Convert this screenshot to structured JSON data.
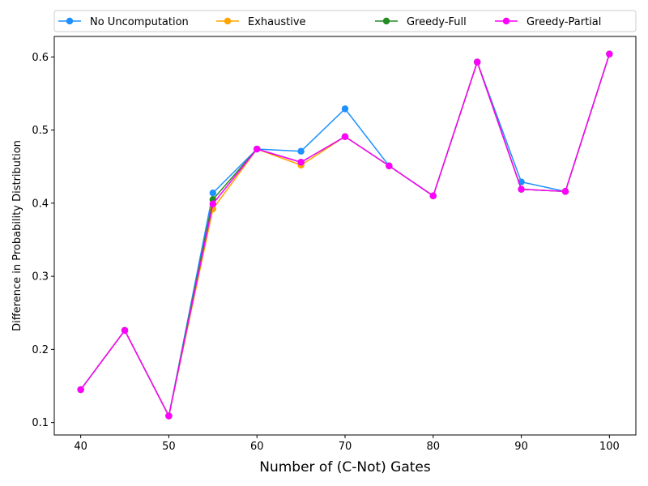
{
  "chart_data": {
    "type": "line",
    "xlabel": "Number of (C-Not) Gates",
    "ylabel": "Difference in Probability Distribution",
    "xlim": [
      37,
      103
    ],
    "ylim": [
      0.083,
      0.628
    ],
    "xticks": [
      40,
      50,
      60,
      70,
      80,
      90,
      100
    ],
    "yticks": [
      0.1,
      0.2,
      0.3,
      0.4,
      0.5,
      0.6
    ],
    "grid": false,
    "legend_position": "top",
    "x": [
      40,
      45,
      50,
      55,
      60,
      65,
      70,
      75,
      80,
      85,
      90,
      95,
      100
    ],
    "series": [
      {
        "name": "No Uncomputation",
        "color": "#1e90ff",
        "values": [
          0.145,
          0.226,
          0.109,
          0.414,
          0.474,
          0.471,
          0.529,
          0.451,
          0.41,
          0.593,
          0.429,
          0.416,
          0.604
        ]
      },
      {
        "name": "Exhaustive",
        "color": "#ffa500",
        "values": [
          0.145,
          0.226,
          0.109,
          0.392,
          0.474,
          0.452,
          0.491,
          0.451,
          0.41,
          0.593,
          0.419,
          0.416,
          0.604
        ]
      },
      {
        "name": "Greedy-Full",
        "color": "#228b22",
        "values": [
          0.145,
          0.226,
          0.109,
          0.405,
          0.474,
          0.456,
          0.491,
          0.451,
          0.41,
          0.593,
          0.419,
          0.416,
          0.604
        ]
      },
      {
        "name": "Greedy-Partial",
        "color": "#ff00ff",
        "values": [
          0.145,
          0.226,
          0.109,
          0.399,
          0.474,
          0.456,
          0.491,
          0.451,
          0.41,
          0.593,
          0.419,
          0.416,
          0.604
        ]
      }
    ]
  }
}
